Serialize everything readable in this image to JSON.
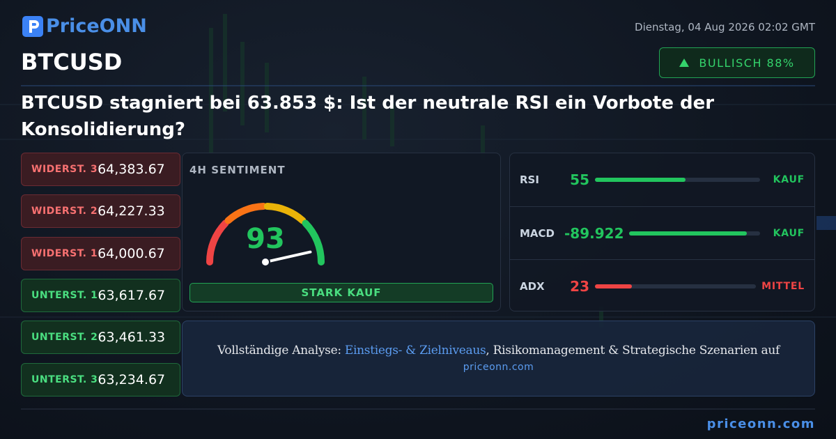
{
  "header": {
    "logo": "PriceONN",
    "date": "Dienstag, 04 Aug 2026 02:02 GMT",
    "symbol": "BTCUSD",
    "sentiment_badge": "BULLISCH 88%",
    "headline": "BTCUSD stagniert bei 63.853 $: Ist der neutrale RSI ein Vorbote der Konsolidierung?"
  },
  "levels": [
    {
      "label": "WIDERST. 3",
      "value": "64,383.67",
      "kind": "resistance"
    },
    {
      "label": "WIDERST. 2",
      "value": "64,227.33",
      "kind": "resistance"
    },
    {
      "label": "WIDERST. 1",
      "value": "64,000.67",
      "kind": "resistance"
    },
    {
      "label": "UNTERST. 1",
      "value": "63,617.67",
      "kind": "support"
    },
    {
      "label": "UNTERST. 2",
      "value": "63,461.33",
      "kind": "support"
    },
    {
      "label": "UNTERST. 3",
      "value": "63,234.67",
      "kind": "support"
    }
  ],
  "gauge": {
    "title": "4H SENTIMENT",
    "value": 93,
    "verdict": "STARK KAUF"
  },
  "indicators": [
    {
      "name": "RSI",
      "value": 55,
      "signal": "KAUF",
      "color": "#22c55e"
    },
    {
      "name": "MACD",
      "value": -89.922,
      "signal": "KAUF",
      "color": "#22c55e"
    },
    {
      "name": "ADX",
      "value": 23,
      "signal": "MITTEL",
      "color": "#ef4444"
    }
  ],
  "banner": {
    "lead": "Vollständige Analyse: ",
    "link": "Einstiegs- & Zielniveaus",
    "rest": ", Risikomanagement & Strategische Szenarien auf",
    "site": "priceonn.com"
  },
  "footer": {
    "site": "priceonn.com"
  }
}
